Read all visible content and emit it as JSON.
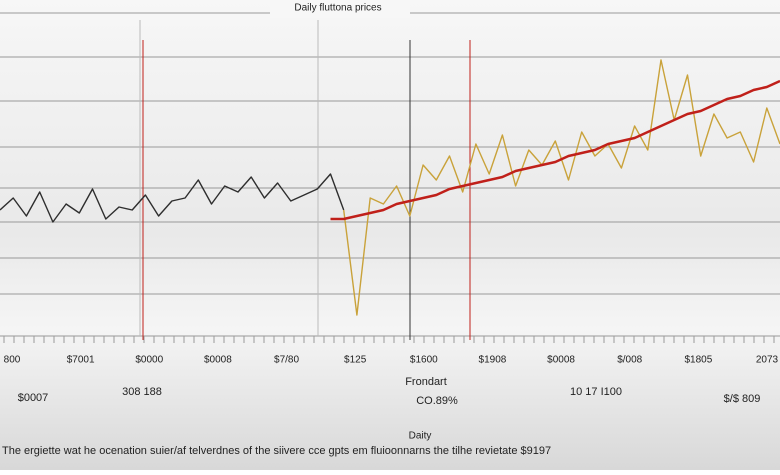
{
  "chart_data": {
    "type": "line",
    "title": "Daily fluttona prices",
    "x_labels": [
      "800",
      "$7001",
      "$0000",
      "$0008",
      "$7/80",
      "$125",
      "$1600",
      "$1908",
      "$0008",
      "$/008",
      "$1805",
      "2073"
    ],
    "ylim": [
      0,
      100
    ],
    "series": [
      {
        "color": "#2e2e2e",
        "values": [
          40,
          44,
          38,
          46,
          36,
          42,
          39,
          47,
          37,
          41,
          40,
          45,
          38,
          43,
          44,
          50,
          42,
          48,
          46,
          51,
          44,
          49,
          43,
          45,
          47,
          52,
          40,
          null,
          null,
          null,
          null,
          null,
          null,
          null,
          null,
          null,
          null,
          null,
          null,
          null,
          null,
          null,
          null,
          null,
          null,
          null,
          null,
          null,
          null,
          null,
          null,
          null,
          null,
          null,
          null,
          null,
          null,
          null,
          null,
          null
        ]
      },
      {
        "color": "#c9a23a",
        "values": [
          null,
          null,
          null,
          null,
          null,
          null,
          null,
          null,
          null,
          null,
          null,
          null,
          null,
          null,
          null,
          null,
          null,
          null,
          null,
          null,
          null,
          null,
          null,
          null,
          null,
          null,
          40,
          5,
          44,
          42,
          48,
          38,
          55,
          50,
          58,
          46,
          62,
          52,
          65,
          48,
          60,
          55,
          63,
          50,
          66,
          58,
          62,
          54,
          68,
          60,
          90,
          70,
          85,
          58,
          72,
          64,
          66,
          56,
          74,
          62
        ]
      },
      {
        "color": "#c0201a",
        "values": [
          null,
          null,
          null,
          null,
          null,
          null,
          null,
          null,
          null,
          null,
          null,
          null,
          null,
          null,
          null,
          null,
          null,
          null,
          null,
          null,
          null,
          null,
          null,
          null,
          null,
          37,
          37,
          38,
          39,
          40,
          42,
          43,
          44,
          45,
          47,
          48,
          49,
          50,
          51,
          53,
          54,
          55,
          56,
          58,
          59,
          60,
          62,
          63,
          64,
          66,
          68,
          70,
          72,
          73,
          75,
          77,
          78,
          80,
          81,
          83
        ]
      }
    ],
    "footer_labels": [
      "$0007",
      "308 188",
      "Frondart",
      "CO.89%",
      "10 17 I100",
      "$/$ 809"
    ],
    "subtitle": "Daity",
    "caption": "The ergiette wat he ocenation suier/af telverdnes of the siivere cce gpts em fluioonnarns the tilhe revietate $9197"
  }
}
